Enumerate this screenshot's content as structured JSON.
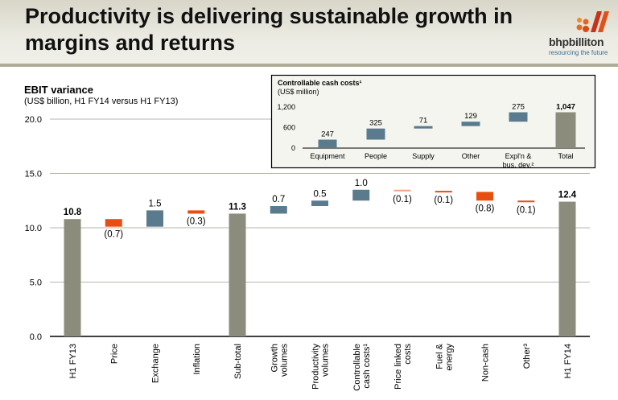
{
  "header": {
    "title_line1": "Productivity is delivering sustainable growth in",
    "title_line2": "margins and returns",
    "logo_word": "bhpbilliton",
    "logo_tagline": "resourcing the future"
  },
  "colors": {
    "total": "#8c8c7c",
    "increase": "#5a7a8e",
    "decrease": "#e84e0f",
    "decrease_light": "#f4a08a",
    "gridline": "#b8b6aa",
    "inset_bg": "#f5f5f0"
  },
  "chart_data": [
    {
      "type": "bar",
      "subtype": "waterfall",
      "title": "EBIT variance",
      "subtitle": "(US$ billion, H1 FY14 versus H1 FY13)",
      "xlabel": "",
      "ylabel": "",
      "ylim": [
        0,
        20
      ],
      "yticks": [
        "0.0",
        "5.0",
        "10.0",
        "15.0",
        "20.0"
      ],
      "grid": true,
      "categories": [
        "H1 FY13",
        "Price",
        "Exchange",
        "Inflation",
        "Sub-total",
        "Growth volumes",
        "Productivity volumes",
        "Controllable cash costs¹",
        "Price linked costs",
        "Fuel & energy",
        "Non-cash",
        "Other³",
        "H1 FY14"
      ],
      "values": [
        10.8,
        -0.7,
        1.5,
        -0.3,
        11.3,
        0.7,
        0.5,
        1.0,
        -0.1,
        -0.1,
        -0.8,
        -0.1,
        12.4
      ],
      "kinds": [
        "total",
        "delta",
        "delta",
        "delta",
        "total",
        "delta",
        "delta",
        "delta",
        "delta",
        "delta",
        "delta",
        "delta",
        "total"
      ],
      "labels": [
        "10.8",
        "(0.7)",
        "1.5",
        "(0.3)",
        "11.3",
        "0.7",
        "0.5",
        "1.0",
        "(0.1)",
        "(0.1)",
        "(0.8)",
        "(0.1)",
        "12.4"
      ]
    },
    {
      "type": "bar",
      "subtype": "waterfall",
      "title": "Controllable cash costs¹",
      "subtitle": "(US$ million)",
      "ylim": [
        0,
        1200
      ],
      "yticks": [
        "0",
        "600",
        "1,200"
      ],
      "grid": false,
      "categories": [
        "Equipment",
        "People",
        "Supply",
        "Other",
        "Expl'n & bus. dev.²",
        "Total"
      ],
      "values": [
        247,
        325,
        71,
        129,
        275,
        1047
      ],
      "kinds": [
        "delta",
        "delta",
        "delta",
        "delta",
        "delta",
        "total"
      ],
      "labels": [
        "247",
        "325",
        "71",
        "129",
        "275",
        "1,047"
      ]
    }
  ]
}
